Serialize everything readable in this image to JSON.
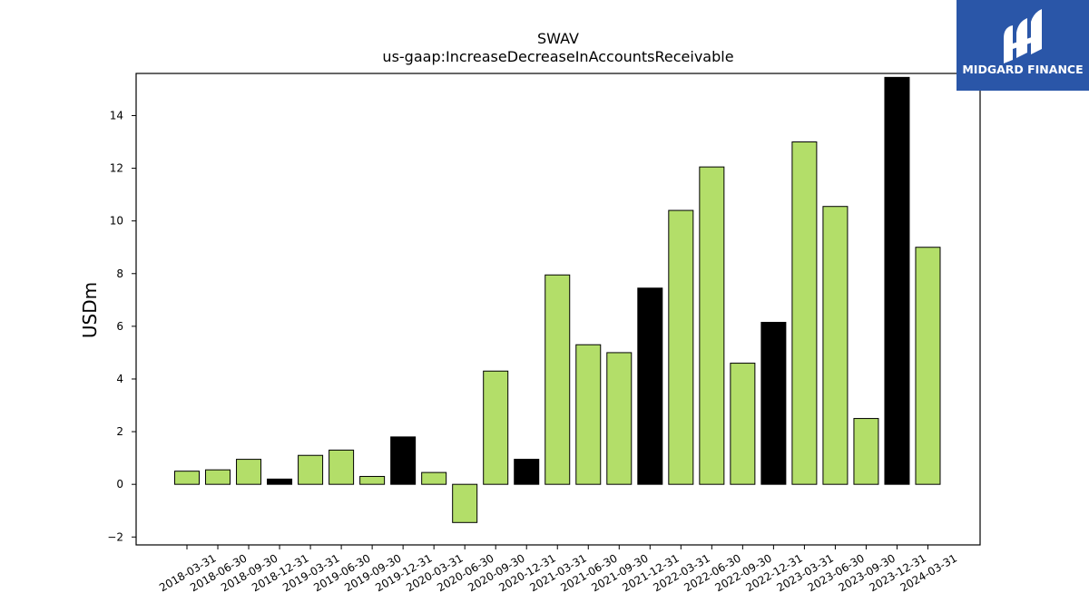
{
  "logo": {
    "text": "MIDGARD FINANCE",
    "background_color": "#2a56a8",
    "icon": "midgard-m-logo-icon"
  },
  "chart_data": {
    "type": "bar",
    "title": "SWAV",
    "subtitle": "us-gaap:IncreaseDecreaseInAccountsReceivable",
    "xlabel": "",
    "ylabel": "USDm",
    "ylim": [
      -2.3,
      15.6
    ],
    "yticks": [
      -2,
      0,
      2,
      4,
      6,
      8,
      10,
      12,
      14
    ],
    "grid": false,
    "colors": {
      "quarterly": "#b3de69",
      "annual": "#000000",
      "edge": "#000000"
    },
    "categories": [
      "2018-03-31",
      "2018-06-30",
      "2018-09-30",
      "2018-12-31",
      "2019-03-31",
      "2019-06-30",
      "2019-09-30",
      "2019-12-31",
      "2020-03-31",
      "2020-06-30",
      "2020-09-30",
      "2020-12-31",
      "2021-03-31",
      "2021-06-30",
      "2021-09-30",
      "2021-12-31",
      "2022-03-31",
      "2022-06-30",
      "2022-09-30",
      "2022-12-31",
      "2023-03-31",
      "2023-06-30",
      "2023-09-30",
      "2023-12-31",
      "2024-03-31"
    ],
    "values": [
      0.5,
      0.55,
      0.95,
      0.2,
      1.1,
      1.3,
      0.3,
      1.8,
      0.45,
      -1.45,
      4.3,
      0.95,
      7.95,
      5.3,
      5.0,
      7.45,
      10.4,
      12.05,
      4.6,
      6.15,
      13.0,
      10.55,
      2.5,
      15.45,
      9.0
    ],
    "bar_colors": [
      "#b3de69",
      "#b3de69",
      "#b3de69",
      "#000000",
      "#b3de69",
      "#b3de69",
      "#b3de69",
      "#000000",
      "#b3de69",
      "#b3de69",
      "#b3de69",
      "#000000",
      "#b3de69",
      "#b3de69",
      "#b3de69",
      "#000000",
      "#b3de69",
      "#b3de69",
      "#b3de69",
      "#000000",
      "#b3de69",
      "#b3de69",
      "#b3de69",
      "#000000",
      "#b3de69"
    ]
  }
}
